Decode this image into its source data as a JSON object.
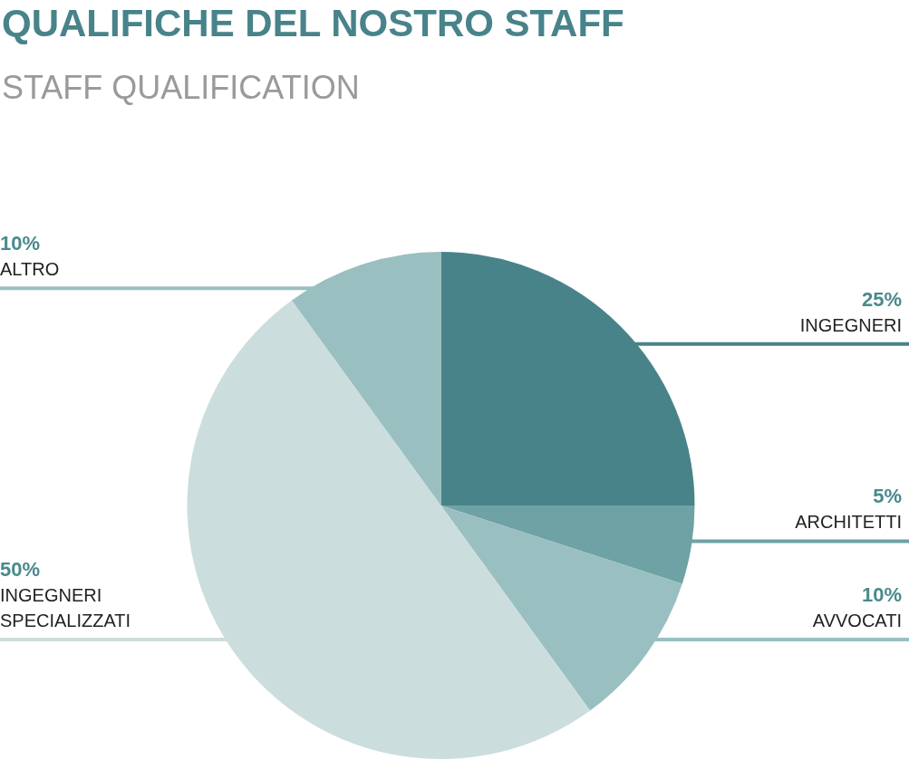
{
  "chart_data": {
    "type": "pie",
    "title": "QUALIFICHE DEL NOSTRO STAFF",
    "subtitle": "STAFF QUALIFICATION",
    "categories": [
      "INGEGNERI",
      "ARCHITETTI",
      "AVVOCATI",
      "INGEGNERI SPECIALIZZATI",
      "ALTRO"
    ],
    "values": [
      25,
      5,
      10,
      50,
      10
    ],
    "colors": [
      "#48838a",
      "#6ea2a5",
      "#9abfc0",
      "#cbdddd",
      "#9abfc0"
    ],
    "value_labels": [
      "25%",
      "5%",
      "10%",
      "50%",
      "10%"
    ],
    "legend": false
  }
}
